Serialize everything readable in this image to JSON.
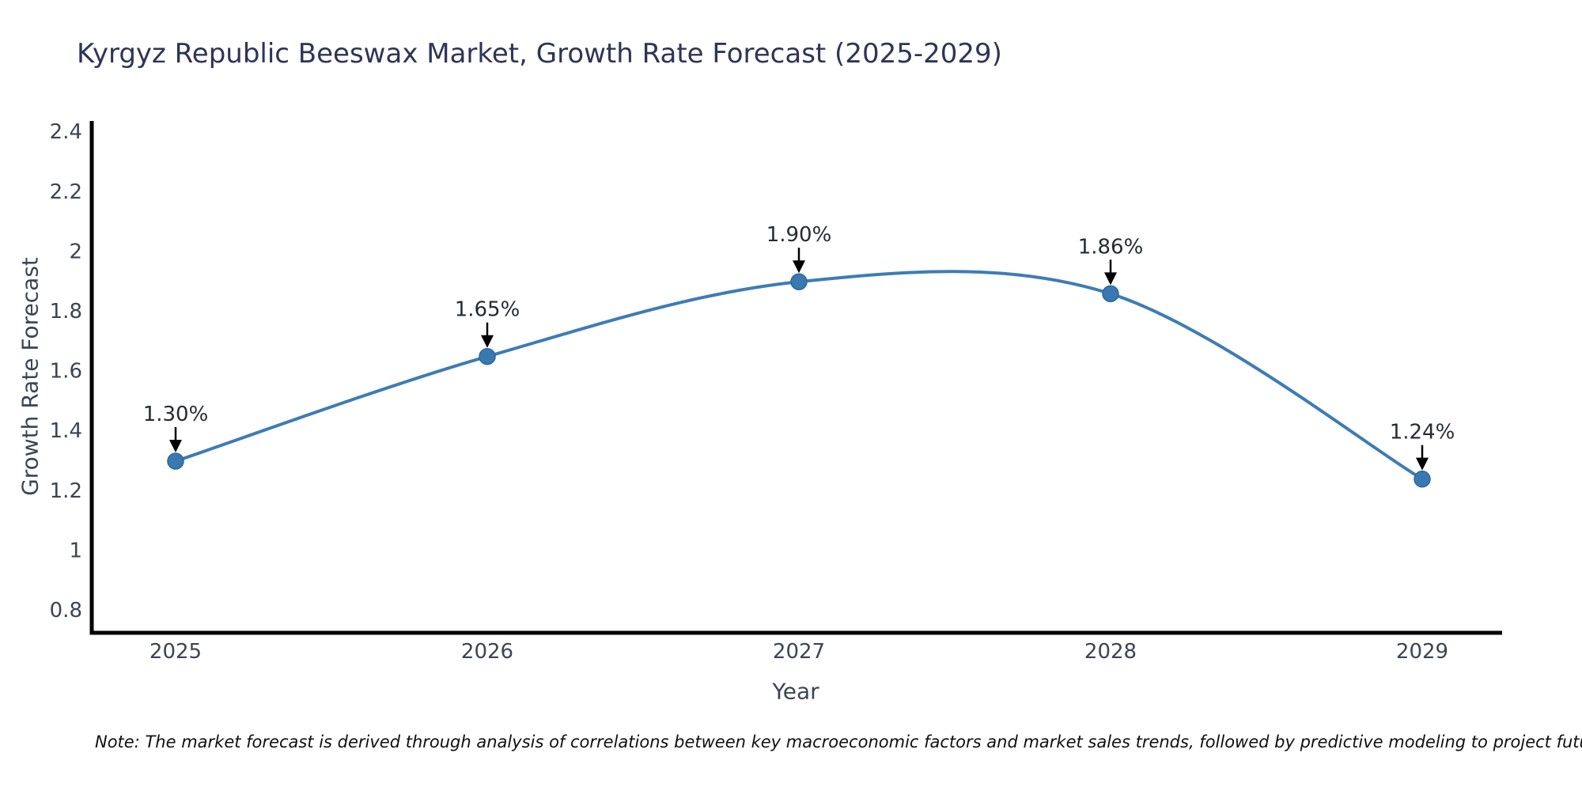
{
  "title": "Kyrgyz Republic Beeswax Market, Growth Rate Forecast (2025-2029)",
  "note": "Note: The market forecast is derived through analysis of correlations between key macroeconomic factors and market sales trends, followed by predictive modeling to project future sales",
  "chart_data": {
    "type": "line",
    "title": "Kyrgyz Republic Beeswax Market, Growth Rate Forecast (2025-2029)",
    "xlabel": "Year",
    "ylabel": "Growth Rate Forecast",
    "categories": [
      "2025",
      "2026",
      "2027",
      "2028",
      "2029"
    ],
    "values": [
      1.3,
      1.65,
      1.9,
      1.86,
      1.24
    ],
    "point_labels": [
      "1.30%",
      "1.65%",
      "1.90%",
      "1.86%",
      "1.24%"
    ],
    "ylim": [
      0.8,
      2.4
    ],
    "ytick_labels": [
      "2.4",
      "2.2",
      "2",
      "1.8",
      "1.6",
      "1.4",
      "1.2",
      "1",
      "0.8"
    ],
    "ytick_values": [
      2.4,
      2.2,
      2.0,
      1.8,
      1.6,
      1.4,
      1.2,
      1.0,
      0.8
    ],
    "grid": false,
    "legend": "none",
    "line_style": "smooth-spline",
    "markers": "circle",
    "annotations": "value labels with downward arrows above each point",
    "colors": {
      "line": "#3d7cb6",
      "marker_fill": "#3a78b2",
      "marker_edge": "#2e679c",
      "axis": "#000000",
      "tick_text": "#3c4452",
      "title_text": "#2e3555",
      "annotation_text": "#262b33",
      "arrow": "#000000",
      "note_text": "#101010"
    }
  }
}
